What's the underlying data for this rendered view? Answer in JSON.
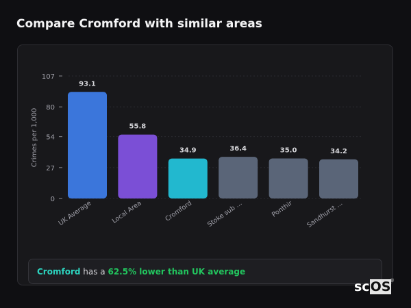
{
  "title": "Compare Cromford with similar areas",
  "chart_data": {
    "type": "bar",
    "categories": [
      "UK Average",
      "Local Area",
      "Cromford",
      "Stoke sub ...",
      "Ponthir",
      "Sandhurst ..."
    ],
    "values": [
      93.1,
      55.8,
      34.9,
      36.4,
      35.0,
      34.2
    ],
    "value_labels": [
      "93.1",
      "55.8",
      "34.9",
      "36.4",
      "35.0",
      "34.2"
    ],
    "colors": [
      "#3b76db",
      "#7b4fd6",
      "#22b8cf",
      "#5a6578",
      "#5a6578",
      "#5a6578"
    ],
    "ylabel": "Crimes per 1,000",
    "yticks": [
      "0",
      "27",
      "54",
      "80",
      "107"
    ],
    "ylim": [
      0,
      107
    ],
    "grid": true
  },
  "summary": {
    "area": "Cromford",
    "middle": " has a ",
    "stat": "62.5% lower than UK average"
  },
  "watermark": "scOS"
}
